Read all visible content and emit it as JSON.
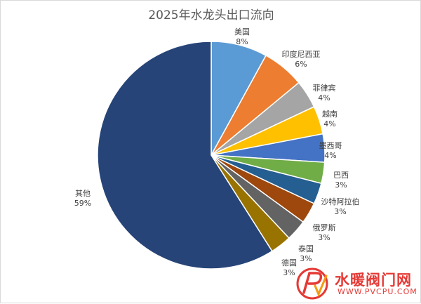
{
  "chart_data": {
    "type": "pie",
    "title": "2025年水龙头出口流向",
    "slices": [
      {
        "label": "美国",
        "value": 8,
        "value_label": "8%",
        "color": "#5b9bd5"
      },
      {
        "label": "印度尼西亚",
        "value": 6,
        "value_label": "6%",
        "color": "#ed7d31"
      },
      {
        "label": "菲律宾",
        "value": 4,
        "value_label": "4%",
        "color": "#a5a5a5"
      },
      {
        "label": "越南",
        "value": 4,
        "value_label": "4%",
        "color": "#ffc000"
      },
      {
        "label": "墨西哥",
        "value": 4,
        "value_label": "4%",
        "color": "#4472c4"
      },
      {
        "label": "巴西",
        "value": 3,
        "value_label": "3%",
        "color": "#70ad47"
      },
      {
        "label": "沙特阿拉伯",
        "value": 3,
        "value_label": "3%",
        "color": "#255e91"
      },
      {
        "label": "俄罗斯",
        "value": 3,
        "value_label": "3%",
        "color": "#9e480e"
      },
      {
        "label": "泰国",
        "value": 3,
        "value_label": "3%",
        "color": "#636363"
      },
      {
        "label": "德国",
        "value": 3,
        "value_label": "3%",
        "color": "#997300"
      },
      {
        "label": "其他",
        "value": 59,
        "value_label": "59%",
        "color": "#264478"
      }
    ]
  },
  "watermark": {
    "title": "水暖阀门网",
    "url": "WWW.PVCPU.COM",
    "accent_color": "#e53935"
  }
}
